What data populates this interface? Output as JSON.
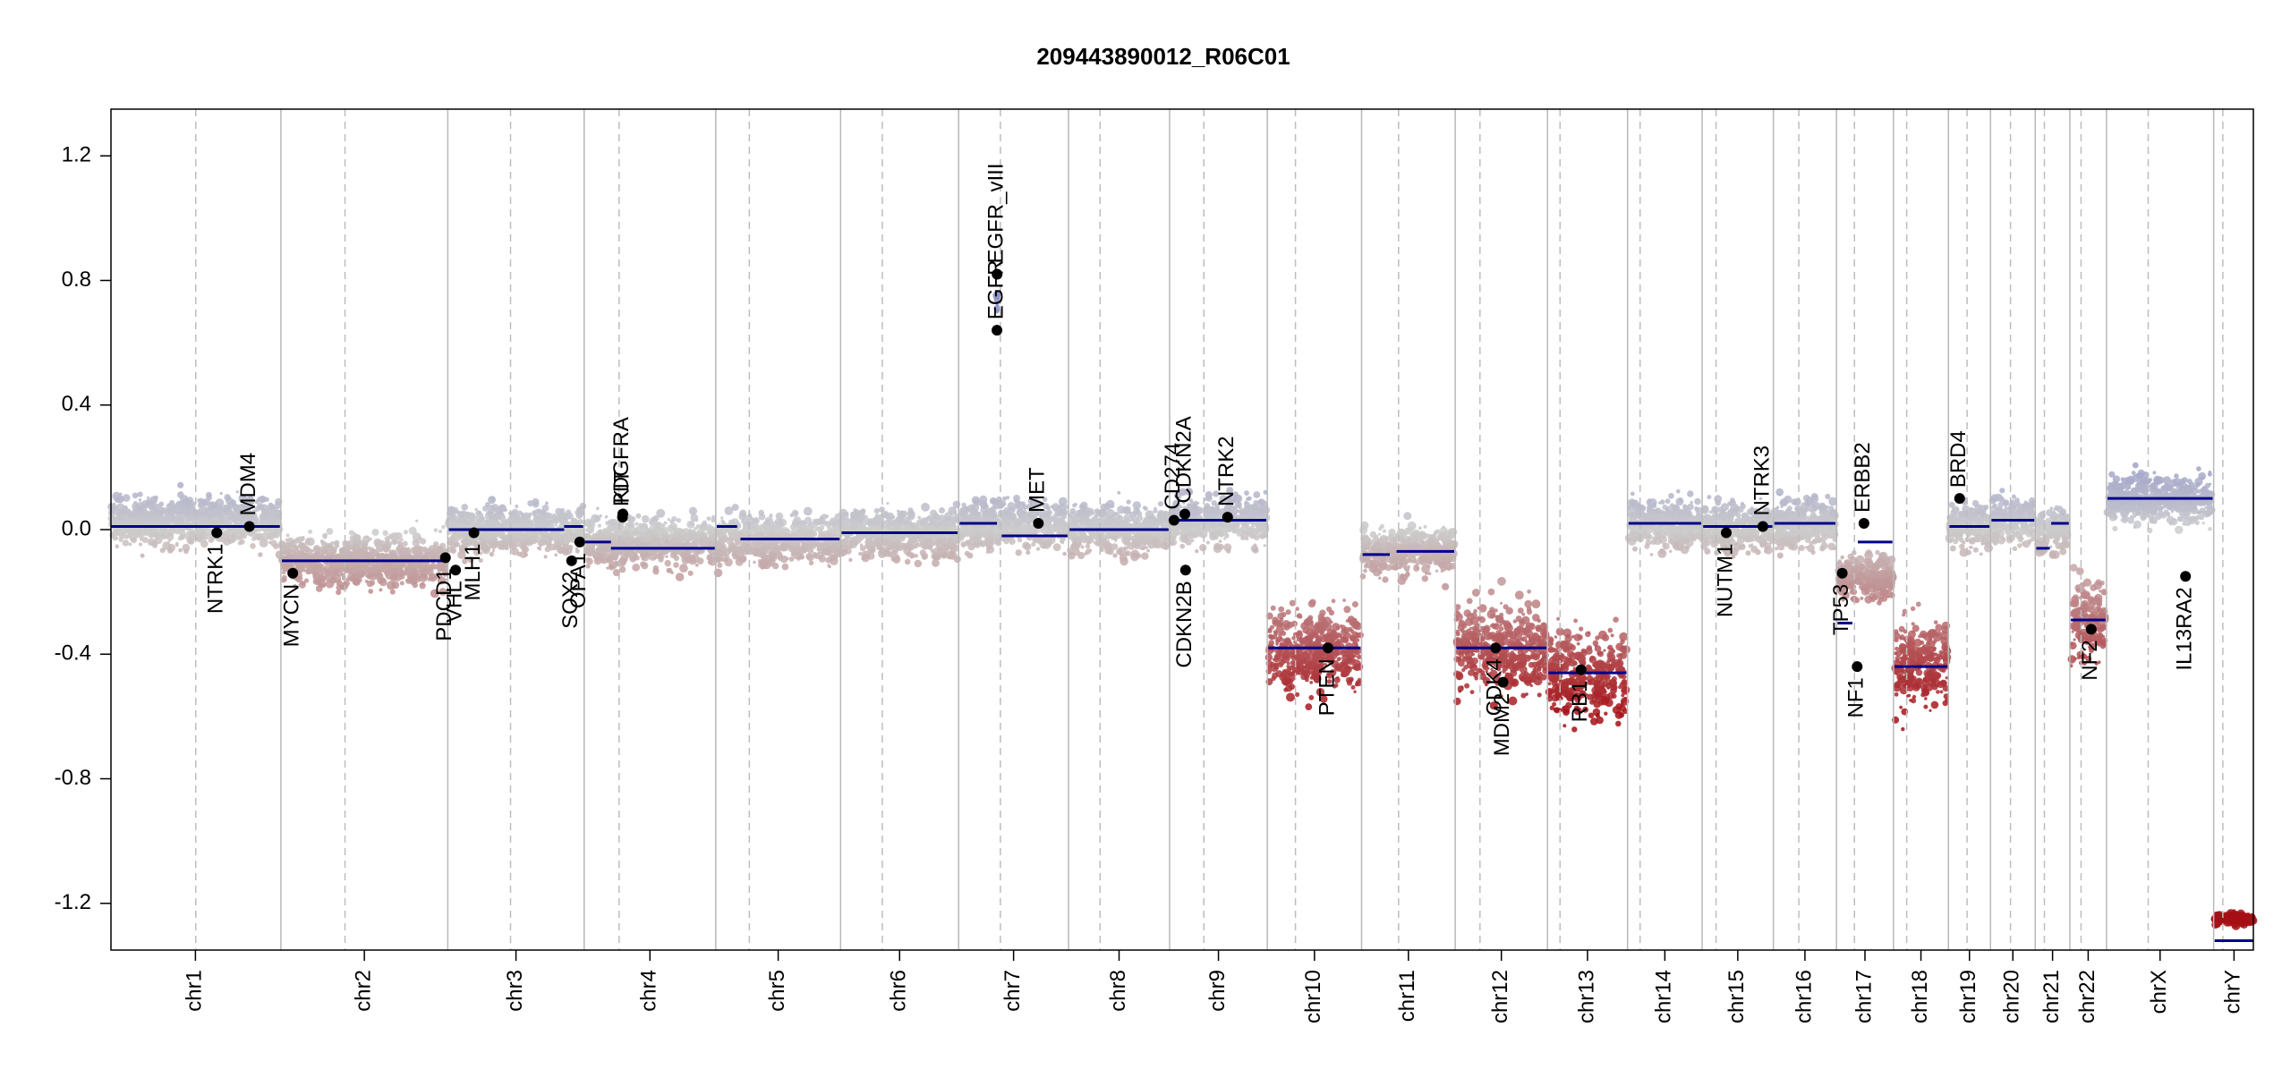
{
  "chart_data": {
    "type": "scatter",
    "title": "209443890012_R06C01",
    "xlabel": "",
    "ylabel": "",
    "ylim": [
      -1.35,
      1.35
    ],
    "yticks": [
      1.2,
      0.8,
      0.4,
      0.0,
      -0.4,
      -0.8,
      -1.2
    ],
    "ytick_labels": [
      "1.2",
      "0.8",
      "0.4",
      "0.0",
      "-0.4",
      "-0.8",
      "-1.2"
    ],
    "grid": false,
    "chromosomes": [
      {
        "name": "chr1",
        "length": 249,
        "centromere": 125,
        "base": 0.03,
        "segments": [
          {
            "from": 0,
            "to": 249,
            "value": 0.01
          }
        ]
      },
      {
        "name": "chr2",
        "length": 243,
        "centromere": 93,
        "base": -0.1,
        "segments": [
          {
            "from": 0,
            "to": 243,
            "value": -0.1
          }
        ]
      },
      {
        "name": "chr3",
        "length": 198,
        "centromere": 91,
        "base": 0.0,
        "segments": [
          {
            "from": 0,
            "to": 140,
            "value": 0.0
          },
          {
            "from": 140,
            "to": 170,
            "value": 0.0
          },
          {
            "from": 170,
            "to": 198,
            "value": 0.01
          }
        ]
      },
      {
        "name": "chr4",
        "length": 191,
        "centromere": 50,
        "base": -0.04,
        "segments": [
          {
            "from": 0,
            "to": 38,
            "value": -0.04
          },
          {
            "from": 38,
            "to": 191,
            "value": -0.06
          }
        ]
      },
      {
        "name": "chr5",
        "length": 181,
        "centromere": 48,
        "base": -0.03,
        "segments": [
          {
            "from": 0,
            "to": 30,
            "value": 0.01
          },
          {
            "from": 35,
            "to": 181,
            "value": -0.03
          }
        ]
      },
      {
        "name": "chr6",
        "length": 171,
        "centromere": 60,
        "base": -0.01,
        "segments": [
          {
            "from": 0,
            "to": 171,
            "value": -0.01
          }
        ]
      },
      {
        "name": "chr7",
        "length": 159,
        "centromere": 60,
        "base": 0.02,
        "segments": [
          {
            "from": 0,
            "to": 55,
            "value": 0.02
          },
          {
            "from": 62,
            "to": 159,
            "value": -0.02
          }
        ]
      },
      {
        "name": "chr8",
        "length": 146,
        "centromere": 45,
        "base": 0.0,
        "segments": [
          {
            "from": 0,
            "to": 146,
            "value": 0.0
          }
        ]
      },
      {
        "name": "chr9",
        "length": 141,
        "centromere": 49,
        "base": 0.03,
        "segments": [
          {
            "from": 0,
            "to": 141,
            "value": 0.03
          }
        ]
      },
      {
        "name": "chr10",
        "length": 136,
        "centromere": 40,
        "base": -0.38,
        "segments": [
          {
            "from": 0,
            "to": 136,
            "value": -0.38
          }
        ]
      },
      {
        "name": "chr11",
        "length": 135,
        "centromere": 53,
        "base": -0.07,
        "segments": [
          {
            "from": 0,
            "to": 40,
            "value": -0.08
          },
          {
            "from": 50,
            "to": 135,
            "value": -0.07
          }
        ]
      },
      {
        "name": "chr12",
        "length": 133,
        "centromere": 35,
        "base": -0.38,
        "segments": [
          {
            "from": 0,
            "to": 133,
            "value": -0.38
          }
        ]
      },
      {
        "name": "chr13",
        "length": 115,
        "centromere": 17,
        "base": -0.46,
        "segments": [
          {
            "from": 0,
            "to": 115,
            "value": -0.46
          }
        ]
      },
      {
        "name": "chr14",
        "length": 107,
        "centromere": 17,
        "base": 0.02,
        "segments": [
          {
            "from": 0,
            "to": 107,
            "value": 0.02
          }
        ]
      },
      {
        "name": "chr15",
        "length": 102,
        "centromere": 19,
        "base": 0.01,
        "segments": [
          {
            "from": 0,
            "to": 102,
            "value": 0.01
          }
        ]
      },
      {
        "name": "chr16",
        "length": 90,
        "centromere": 36,
        "base": 0.02,
        "segments": [
          {
            "from": 0,
            "to": 90,
            "value": 0.02
          }
        ]
      },
      {
        "name": "chr17",
        "length": 81,
        "centromere": 25,
        "base": -0.15,
        "segments": [
          {
            "from": 0,
            "to": 22,
            "value": -0.3
          },
          {
            "from": 30,
            "to": 81,
            "value": -0.04
          }
        ]
      },
      {
        "name": "chr18",
        "length": 78,
        "centromere": 18,
        "base": -0.43,
        "segments": [
          {
            "from": 0,
            "to": 78,
            "value": -0.44
          }
        ]
      },
      {
        "name": "chr19",
        "length": 59,
        "centromere": 26,
        "base": 0.01,
        "segments": [
          {
            "from": 0,
            "to": 59,
            "value": 0.01
          }
        ]
      },
      {
        "name": "chr20",
        "length": 63,
        "centromere": 28,
        "base": 0.03,
        "segments": [
          {
            "from": 0,
            "to": 63,
            "value": 0.03
          }
        ]
      },
      {
        "name": "chr21",
        "length": 48,
        "centromere": 12,
        "base": 0.0,
        "segments": [
          {
            "from": 0,
            "to": 20,
            "value": -0.06
          },
          {
            "from": 22,
            "to": 48,
            "value": 0.02
          }
        ]
      },
      {
        "name": "chr22",
        "length": 51,
        "centromere": 15,
        "base": -0.3,
        "segments": [
          {
            "from": 0,
            "to": 51,
            "value": -0.29
          }
        ]
      },
      {
        "name": "chrX",
        "length": 155,
        "centromere": 60,
        "base": 0.1,
        "segments": [
          {
            "from": 0,
            "to": 155,
            "value": 0.1
          }
        ]
      },
      {
        "name": "chrY",
        "length": 57,
        "centromere": 12,
        "base": -1.25,
        "segments": [
          {
            "from": 0,
            "to": 57,
            "value": -1.32
          }
        ]
      }
    ],
    "genes": [
      {
        "name": "NTRK1",
        "chr": "chr1",
        "pos": 156,
        "value": -0.01,
        "label_side": "below"
      },
      {
        "name": "MDM4",
        "chr": "chr1",
        "pos": 204,
        "value": 0.01,
        "label_side": "above"
      },
      {
        "name": "MYCN",
        "chr": "chr2",
        "pos": 16,
        "value": -0.14,
        "label_side": "below"
      },
      {
        "name": "PDCD1",
        "chr": "chr2",
        "pos": 241,
        "value": -0.09,
        "label_side": "below"
      },
      {
        "name": "VHL",
        "chr": "chr3",
        "pos": 10,
        "value": -0.13,
        "label_side": "below"
      },
      {
        "name": "MLH1",
        "chr": "chr3",
        "pos": 37,
        "value": -0.01,
        "label_side": "below"
      },
      {
        "name": "SOX2",
        "chr": "chr3",
        "pos": 181,
        "value": -0.1,
        "label_side": "below"
      },
      {
        "name": "OPA1",
        "chr": "chr3",
        "pos": 193,
        "value": -0.04,
        "label_side": "below"
      },
      {
        "name": "PDGFRA",
        "chr": "chr4",
        "pos": 55,
        "value": 0.04,
        "label_side": "above"
      },
      {
        "name": "KIT",
        "chr": "chr4",
        "pos": 55.5,
        "value": 0.05,
        "label_side": "above"
      },
      {
        "name": "EGFR",
        "chr": "chr7",
        "pos": 55,
        "value": 0.64,
        "label_side": "above"
      },
      {
        "name": "EGFR_vIII",
        "chr": "chr7",
        "pos": 55.2,
        "value": 0.82,
        "label_side": "above"
      },
      {
        "name": "MET",
        "chr": "chr7",
        "pos": 116,
        "value": 0.02,
        "label_side": "above"
      },
      {
        "name": "CD274",
        "chr": "chr9",
        "pos": 5,
        "value": 0.03,
        "label_side": "above"
      },
      {
        "name": "CDKN2A",
        "chr": "chr9",
        "pos": 21,
        "value": 0.05,
        "label_side": "above"
      },
      {
        "name": "CDKN2B",
        "chr": "chr9",
        "pos": 22,
        "value": -0.13,
        "label_side": "below"
      },
      {
        "name": "NTRK2",
        "chr": "chr9",
        "pos": 84,
        "value": 0.04,
        "label_side": "above"
      },
      {
        "name": "PTEN",
        "chr": "chr10",
        "pos": 88,
        "value": -0.38,
        "label_side": "below"
      },
      {
        "name": "CDK4",
        "chr": "chr12",
        "pos": 58,
        "value": -0.38,
        "label_side": "below"
      },
      {
        "name": "MDM2",
        "chr": "chr12",
        "pos": 69,
        "value": -0.49,
        "label_side": "below"
      },
      {
        "name": "RB1",
        "chr": "chr13",
        "pos": 48,
        "value": -0.45,
        "label_side": "below"
      },
      {
        "name": "NUTM1",
        "chr": "chr15",
        "pos": 34,
        "value": -0.01,
        "label_side": "below"
      },
      {
        "name": "NTRK3",
        "chr": "chr15",
        "pos": 88,
        "value": 0.01,
        "label_side": "above"
      },
      {
        "name": "TP53",
        "chr": "chr17",
        "pos": 7,
        "value": -0.14,
        "label_side": "below"
      },
      {
        "name": "NF1",
        "chr": "chr17",
        "pos": 29,
        "value": -0.44,
        "label_side": "below"
      },
      {
        "name": "ERBB2",
        "chr": "chr17",
        "pos": 39,
        "value": 0.02,
        "label_side": "above"
      },
      {
        "name": "BRD4",
        "chr": "chr19",
        "pos": 15,
        "value": 0.1,
        "label_side": "above"
      },
      {
        "name": "NF2",
        "chr": "chr22",
        "pos": 30,
        "value": -0.32,
        "label_side": "below"
      },
      {
        "name": "IL13RA2",
        "chr": "chrX",
        "pos": 115,
        "value": -0.15,
        "label_side": "below"
      }
    ],
    "colors": {
      "gain": "#8B8FC8",
      "neutral": "#CCCCCC",
      "loss": "#A50F15",
      "segment": "#00008B",
      "gene_marker": "#000000",
      "chrom_border": "#B8B8B8",
      "centromere_line": "#BDBDBD"
    }
  }
}
